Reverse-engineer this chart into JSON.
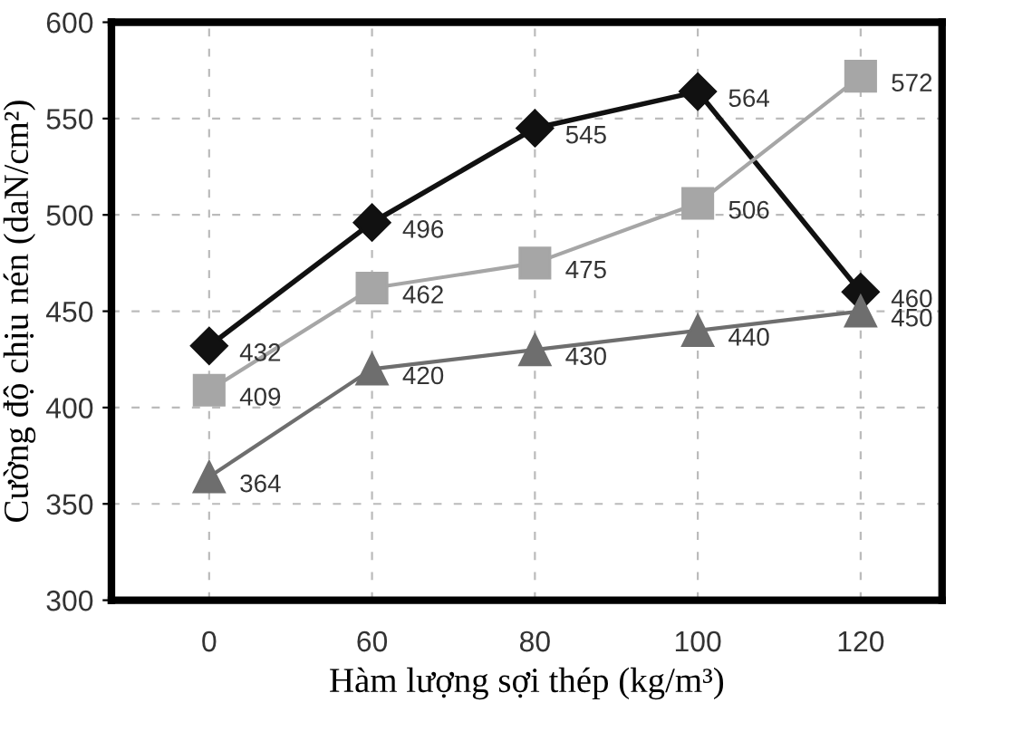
{
  "chart_data": {
    "type": "line",
    "xlabel": "Hàm lượng sợi thép (kg/m³)",
    "ylabel": "Cường độ chịu nén (daN/cm²)",
    "categories": [
      "0",
      "60",
      "80",
      "100",
      "120"
    ],
    "series": [
      {
        "color": "#111111",
        "marker": "diamond",
        "values": [
          432,
          496,
          545,
          564,
          460
        ]
      },
      {
        "color": "#a6a6a6",
        "marker": "square",
        "values": [
          409,
          462,
          475,
          506,
          572
        ]
      },
      {
        "color": "#6e6e6e",
        "marker": "triangle",
        "values": [
          364,
          420,
          430,
          440,
          450
        ]
      }
    ],
    "ylim": [
      300,
      600
    ],
    "yticks": [
      300,
      350,
      400,
      450,
      500,
      550,
      600
    ],
    "grid": true,
    "data_labels": true,
    "line_style": "solid"
  }
}
